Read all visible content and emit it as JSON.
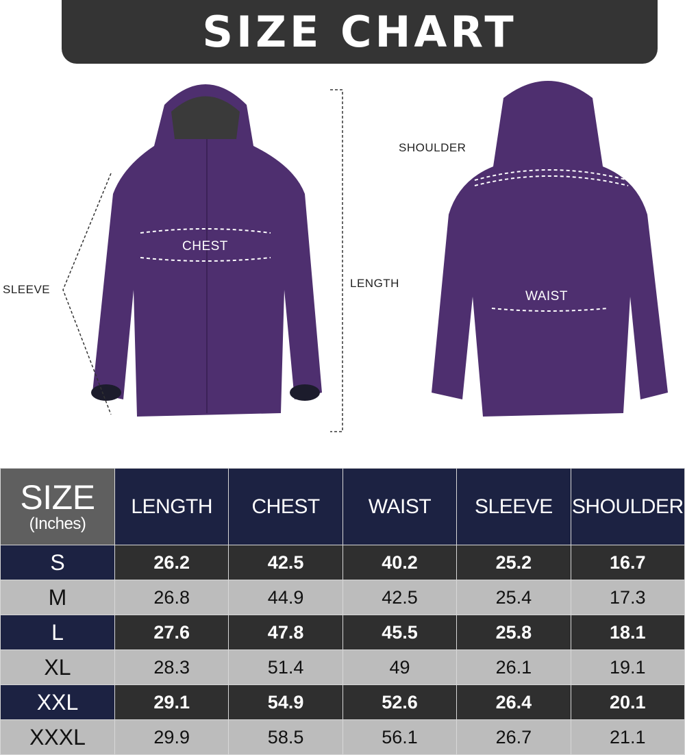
{
  "title": "SIZE CHART",
  "labels": {
    "shoulder": "SHOULDER",
    "chest": "CHEST",
    "sleeve": "SLEEVE",
    "length": "LENGTH",
    "waist": "WAIST"
  },
  "colors": {
    "jacket": "#4e2f6f",
    "header": "#1c2242",
    "banner": "#343434"
  },
  "table": {
    "size_header": "SIZE",
    "unit": "(Inches)",
    "columns": [
      "LENGTH",
      "CHEST",
      "WAIST",
      "SLEEVE",
      "SHOULDER"
    ],
    "rows": [
      {
        "size": "S",
        "values": [
          "26.2",
          "42.5",
          "40.2",
          "25.2",
          "16.7"
        ]
      },
      {
        "size": "M",
        "values": [
          "26.8",
          "44.9",
          "42.5",
          "25.4",
          "17.3"
        ]
      },
      {
        "size": "L",
        "values": [
          "27.6",
          "47.8",
          "45.5",
          "25.8",
          "18.1"
        ]
      },
      {
        "size": "XL",
        "values": [
          "28.3",
          "51.4",
          "49",
          "26.1",
          "19.1"
        ]
      },
      {
        "size": "XXL",
        "values": [
          "29.1",
          "54.9",
          "52.6",
          "26.4",
          "20.1"
        ]
      },
      {
        "size": "XXXL",
        "values": [
          "29.9",
          "58.5",
          "56.1",
          "26.7",
          "21.1"
        ]
      }
    ]
  }
}
